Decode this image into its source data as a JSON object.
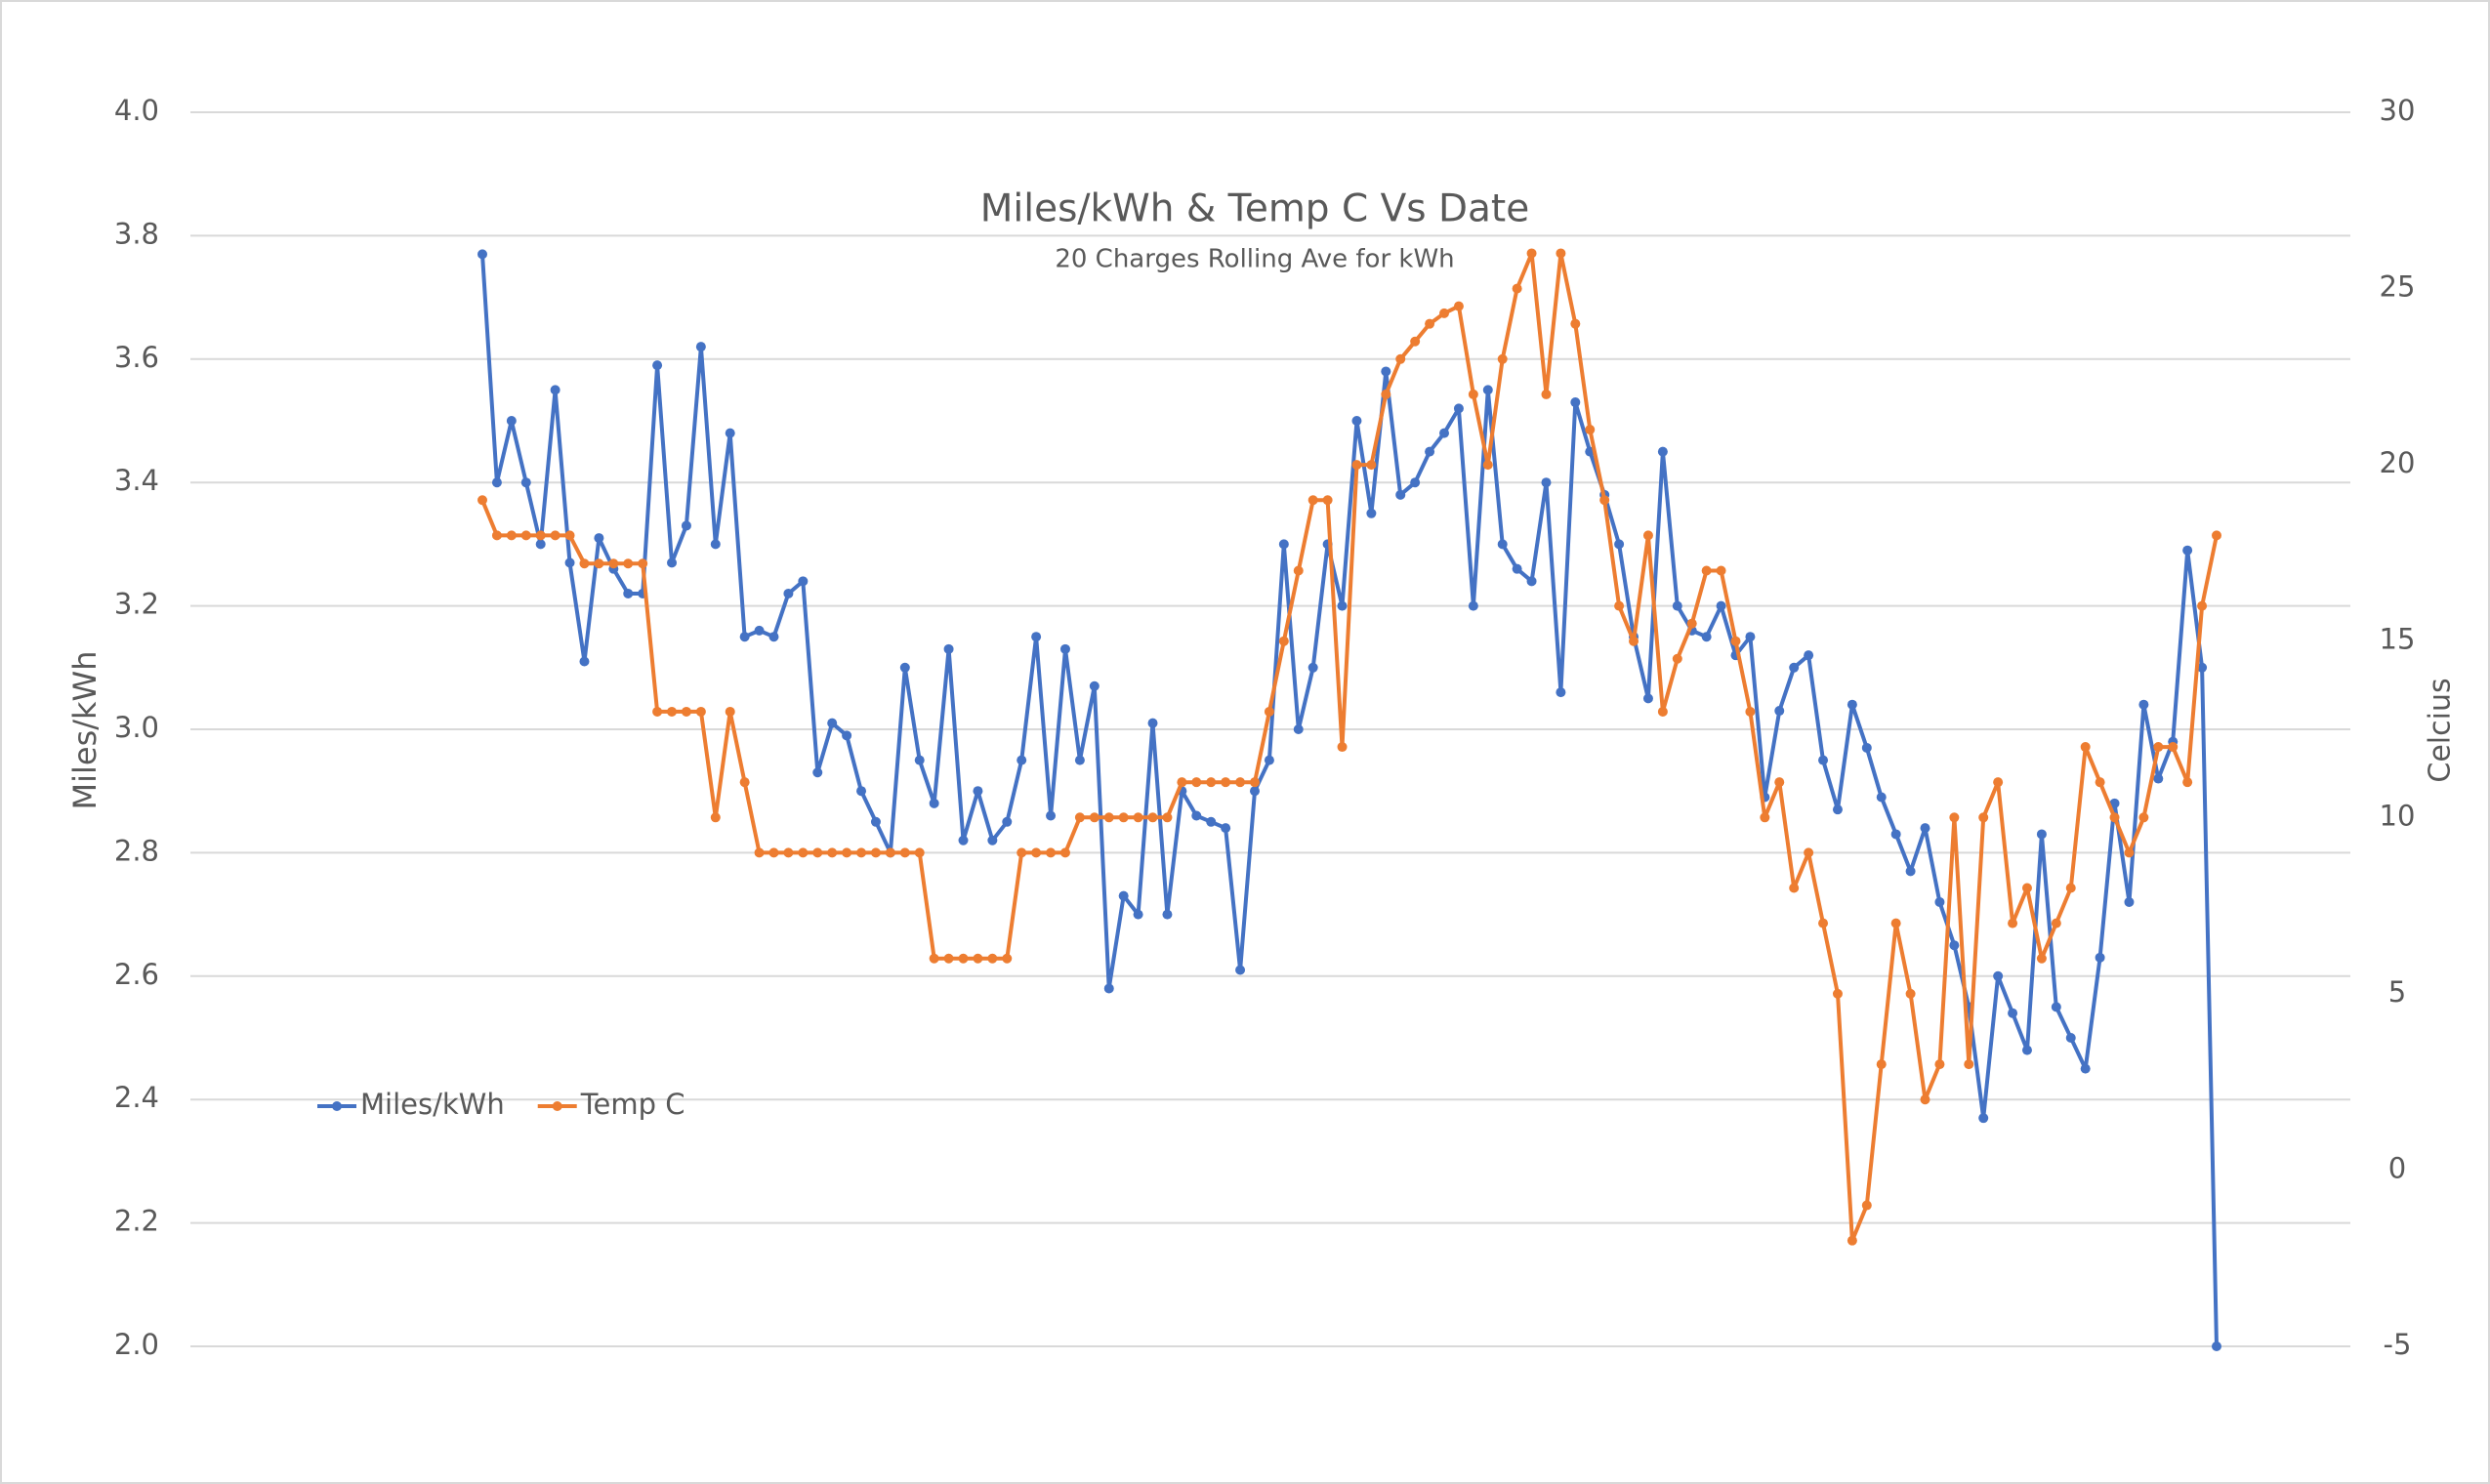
{
  "chart_data": {
    "type": "line",
    "title": "Miles/kWh & Temp C Vs Date",
    "subtitle": "20 Charges Rolling Ave for kWh",
    "y_label": "Miles/kWh",
    "y2_label": "Celcius",
    "categories": [
      null,
      null,
      null,
      null,
      null,
      null,
      null,
      null,
      null,
      null,
      null,
      null,
      null,
      null,
      null,
      null,
      null,
      null,
      null,
      null,
      null,
      null,
      null,
      null,
      null,
      null,
      null,
      null,
      null,
      null,
      null,
      null,
      null,
      null,
      null,
      null,
      null,
      null,
      null,
      null,
      null,
      null,
      null,
      null,
      null,
      null,
      null,
      null,
      null,
      null,
      null,
      null,
      null,
      null,
      null,
      null,
      null,
      null,
      null,
      null,
      null,
      null,
      null,
      null,
      null,
      null,
      null,
      null,
      null,
      null,
      null,
      null,
      null,
      null,
      null,
      null,
      null,
      null,
      null,
      null,
      null,
      null,
      null,
      null,
      null,
      null,
      null,
      null,
      null,
      null,
      null,
      null,
      null,
      null,
      null,
      null,
      null,
      null,
      null,
      null,
      null,
      null,
      null,
      null,
      null,
      null,
      null,
      null,
      null,
      null,
      null,
      null,
      null,
      null,
      null,
      null,
      null,
      null,
      null,
      null
    ],
    "series": [
      {
        "name": "Miles/kWh",
        "color": "#4472c4",
        "values": [
          3.77,
          3.4,
          3.5,
          3.4,
          3.3,
          3.55,
          3.27,
          3.11,
          3.31,
          3.26,
          3.22,
          3.22,
          3.59,
          3.27,
          3.33,
          3.62,
          3.3,
          3.48,
          3.15,
          3.16,
          3.15,
          3.22,
          3.24,
          2.93,
          3.01,
          2.99,
          2.9,
          2.85,
          2.8,
          3.1,
          2.95,
          2.88,
          3.13,
          2.82,
          2.9,
          2.82,
          2.85,
          2.95,
          3.15,
          2.86,
          3.13,
          2.95,
          3.07,
          2.58,
          2.73,
          2.7,
          3.01,
          2.7,
          2.9,
          2.86,
          2.85,
          2.84,
          2.61,
          2.9,
          2.95,
          3.3,
          3.0,
          3.1,
          3.3,
          3.2,
          3.5,
          3.35,
          3.58,
          3.38,
          3.4,
          3.45,
          3.48,
          3.52,
          3.2,
          3.55,
          3.3,
          3.26,
          3.24,
          3.4,
          3.06,
          3.53,
          3.45,
          3.38,
          3.3,
          3.15,
          3.05,
          3.45,
          3.2,
          3.16,
          3.15,
          3.2,
          3.12,
          3.15,
          2.89,
          3.03,
          3.1,
          3.12,
          2.95,
          2.87,
          3.04,
          2.97,
          2.89,
          2.83,
          2.77,
          2.84,
          2.72,
          2.65,
          2.55,
          2.37,
          2.6,
          2.54,
          2.48,
          2.83,
          2.55,
          2.5,
          2.45,
          2.63,
          2.88,
          2.72,
          3.04,
          2.92,
          2.98,
          3.29,
          3.1,
          2.0
        ]
      },
      {
        "name": "Temp C",
        "color": "#ed7d31",
        "axis": "y2",
        "values": [
          19,
          18,
          18,
          18,
          18,
          18,
          18,
          17.2,
          17.2,
          17.2,
          17.2,
          17.2,
          13,
          13,
          13,
          13,
          10,
          13,
          11,
          9,
          9,
          9,
          9,
          9,
          9,
          9,
          9,
          9,
          9,
          9,
          9,
          6,
          6,
          6,
          6,
          6,
          6,
          9,
          9,
          9,
          9,
          10,
          10,
          10,
          10,
          10,
          10,
          10,
          11,
          11,
          11,
          11,
          11,
          11,
          13,
          15,
          17,
          19,
          19,
          12,
          20,
          20,
          22,
          23,
          23.5,
          24,
          24.3,
          24.5,
          22,
          20,
          23,
          25,
          26,
          22,
          26,
          24,
          21,
          19,
          16,
          15,
          18,
          13,
          14.5,
          15.5,
          17,
          17,
          15,
          13,
          10,
          11,
          8,
          9,
          7,
          5,
          -2,
          -1,
          3,
          7,
          5,
          2,
          3,
          10,
          3,
          10,
          11,
          7,
          8,
          6,
          7,
          8,
          12,
          11,
          10,
          9,
          10,
          12,
          12,
          11,
          16,
          18
        ]
      }
    ],
    "ylim": [
      2.0,
      4.0
    ],
    "yticks": [
      {
        "value": 2,
        "label": "2.0"
      },
      2.2,
      2.4,
      2.6,
      2.8,
      {
        "value": 3,
        "label": "3.0"
      },
      3.2,
      3.4,
      3.6,
      3.8,
      {
        "value": 4,
        "label": "4.0"
      }
    ],
    "y2lim": [
      -5,
      30
    ],
    "y2ticks": [
      -5,
      0,
      5,
      10,
      15,
      20,
      25,
      30
    ],
    "grid": true,
    "legend": "left"
  }
}
